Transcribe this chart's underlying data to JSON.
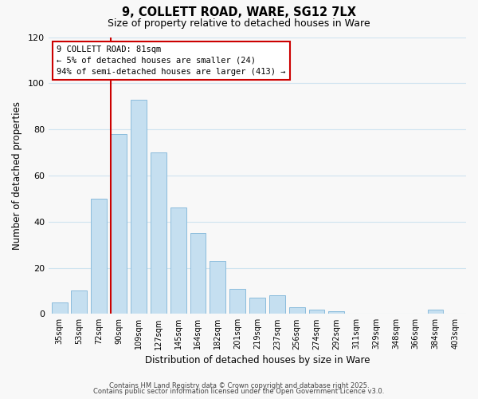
{
  "title": "9, COLLETT ROAD, WARE, SG12 7LX",
  "subtitle": "Size of property relative to detached houses in Ware",
  "xlabel": "Distribution of detached houses by size in Ware",
  "ylabel": "Number of detached properties",
  "categories": [
    "35sqm",
    "53sqm",
    "72sqm",
    "90sqm",
    "109sqm",
    "127sqm",
    "145sqm",
    "164sqm",
    "182sqm",
    "201sqm",
    "219sqm",
    "237sqm",
    "256sqm",
    "274sqm",
    "292sqm",
    "311sqm",
    "329sqm",
    "348sqm",
    "366sqm",
    "384sqm",
    "403sqm"
  ],
  "values": [
    5,
    10,
    50,
    78,
    93,
    70,
    46,
    35,
    23,
    11,
    7,
    8,
    3,
    2,
    1,
    0,
    0,
    0,
    0,
    2,
    0
  ],
  "bar_color": "#c5dff0",
  "bar_edge_color": "#8bbcdc",
  "ylim": [
    0,
    120
  ],
  "yticks": [
    0,
    20,
    40,
    60,
    80,
    100,
    120
  ],
  "vline_color": "#cc0000",
  "annotation_title": "9 COLLETT ROAD: 81sqm",
  "annotation_line1": "← 5% of detached houses are smaller (24)",
  "annotation_line2": "94% of semi-detached houses are larger (413) →",
  "annotation_box_facecolor": "#ffffff",
  "annotation_box_edgecolor": "#cc0000",
  "footer1": "Contains HM Land Registry data © Crown copyright and database right 2025.",
  "footer2": "Contains public sector information licensed under the Open Government Licence v3.0.",
  "background_color": "#f8f8f8",
  "grid_color": "#d0e4f0"
}
